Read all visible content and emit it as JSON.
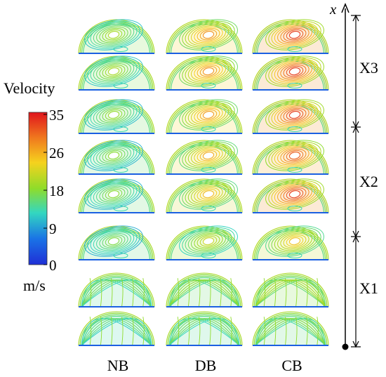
{
  "legend": {
    "title": "Velocity",
    "unit": "m/s",
    "ticks": [
      "35",
      "26",
      "18",
      "9",
      "0"
    ],
    "colormap": [
      "#e0141c",
      "#f07a1e",
      "#f5d21e",
      "#8fdc2a",
      "#33d7c0",
      "#1a73e6",
      "#1f2fd6"
    ]
  },
  "columns": [
    "NB",
    "DB",
    "CB"
  ],
  "axis": {
    "label": "x",
    "sections": [
      "X3",
      "X2",
      "X1"
    ]
  },
  "panels": {
    "rows": 8,
    "cols": 3,
    "intensity": [
      [
        0.55,
        0.8,
        0.95
      ],
      [
        0.55,
        0.8,
        0.95
      ],
      [
        0.52,
        0.78,
        0.95
      ],
      [
        0.5,
        0.75,
        0.9
      ],
      [
        0.5,
        0.72,
        0.95
      ],
      [
        0.48,
        0.6,
        0.7
      ],
      [
        0.45,
        0.5,
        0.55
      ],
      [
        0.42,
        0.45,
        0.48
      ]
    ]
  }
}
